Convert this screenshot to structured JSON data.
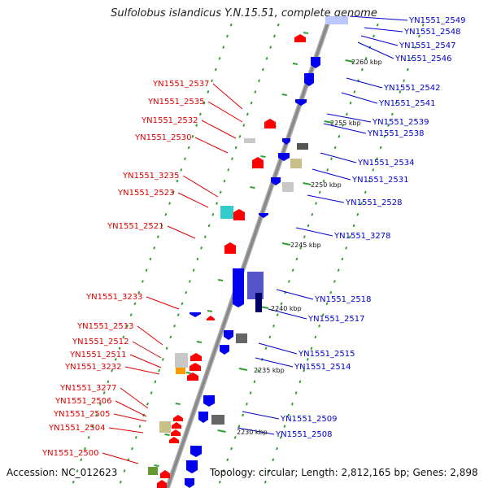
{
  "header": {
    "title": "Sulfolobus islandicus Y.N.15.51, complete genome"
  },
  "footer": {
    "accession": "Accession: NC_012623",
    "summary": "Topology: circular; Length: 2,812,165 bp; Genes: 2,898"
  },
  "colors": {
    "forward": "#ff0000",
    "reverse": "#0000ee",
    "backbone": "#888888",
    "tick": "#33a033",
    "minus_label": "#dd0000",
    "plus_label": "#0000cc"
  },
  "scale_labels": [
    "2260 kbp",
    "2255 kbp",
    "2250 kbp",
    "2245 kbp",
    "2240 kbp",
    "2235 kbp",
    "2230 kbp"
  ],
  "genes_minus": [
    "YN1551_2537",
    "YN1551_2535",
    "YN1551_2532",
    "YN1551_2530",
    "YN1551_3235",
    "YN1551_2523",
    "YN1551_2521",
    "YN1551_3233",
    "YN1551_2513",
    "YN1551_2512",
    "YN1551_2511",
    "YN1551_3232",
    "YN1551_3277",
    "YN1551_2506",
    "YN1551_2505",
    "YN1551_2504",
    "YN1551_2500"
  ],
  "genes_plus": [
    "YN1551_2549",
    "YN1551_2548",
    "YN1551_2547",
    "YN1551_2546",
    "YN1551_2542",
    "YN1551_2541",
    "YN1551_2539",
    "YN1551_2538",
    "YN1551_2534",
    "YN1551_2531",
    "YN1551_2528",
    "YN1551_3278",
    "YN1551_2518",
    "YN1551_2517",
    "YN1551_2515",
    "YN1551_2514",
    "YN1551_2509",
    "YN1551_2508"
  ]
}
